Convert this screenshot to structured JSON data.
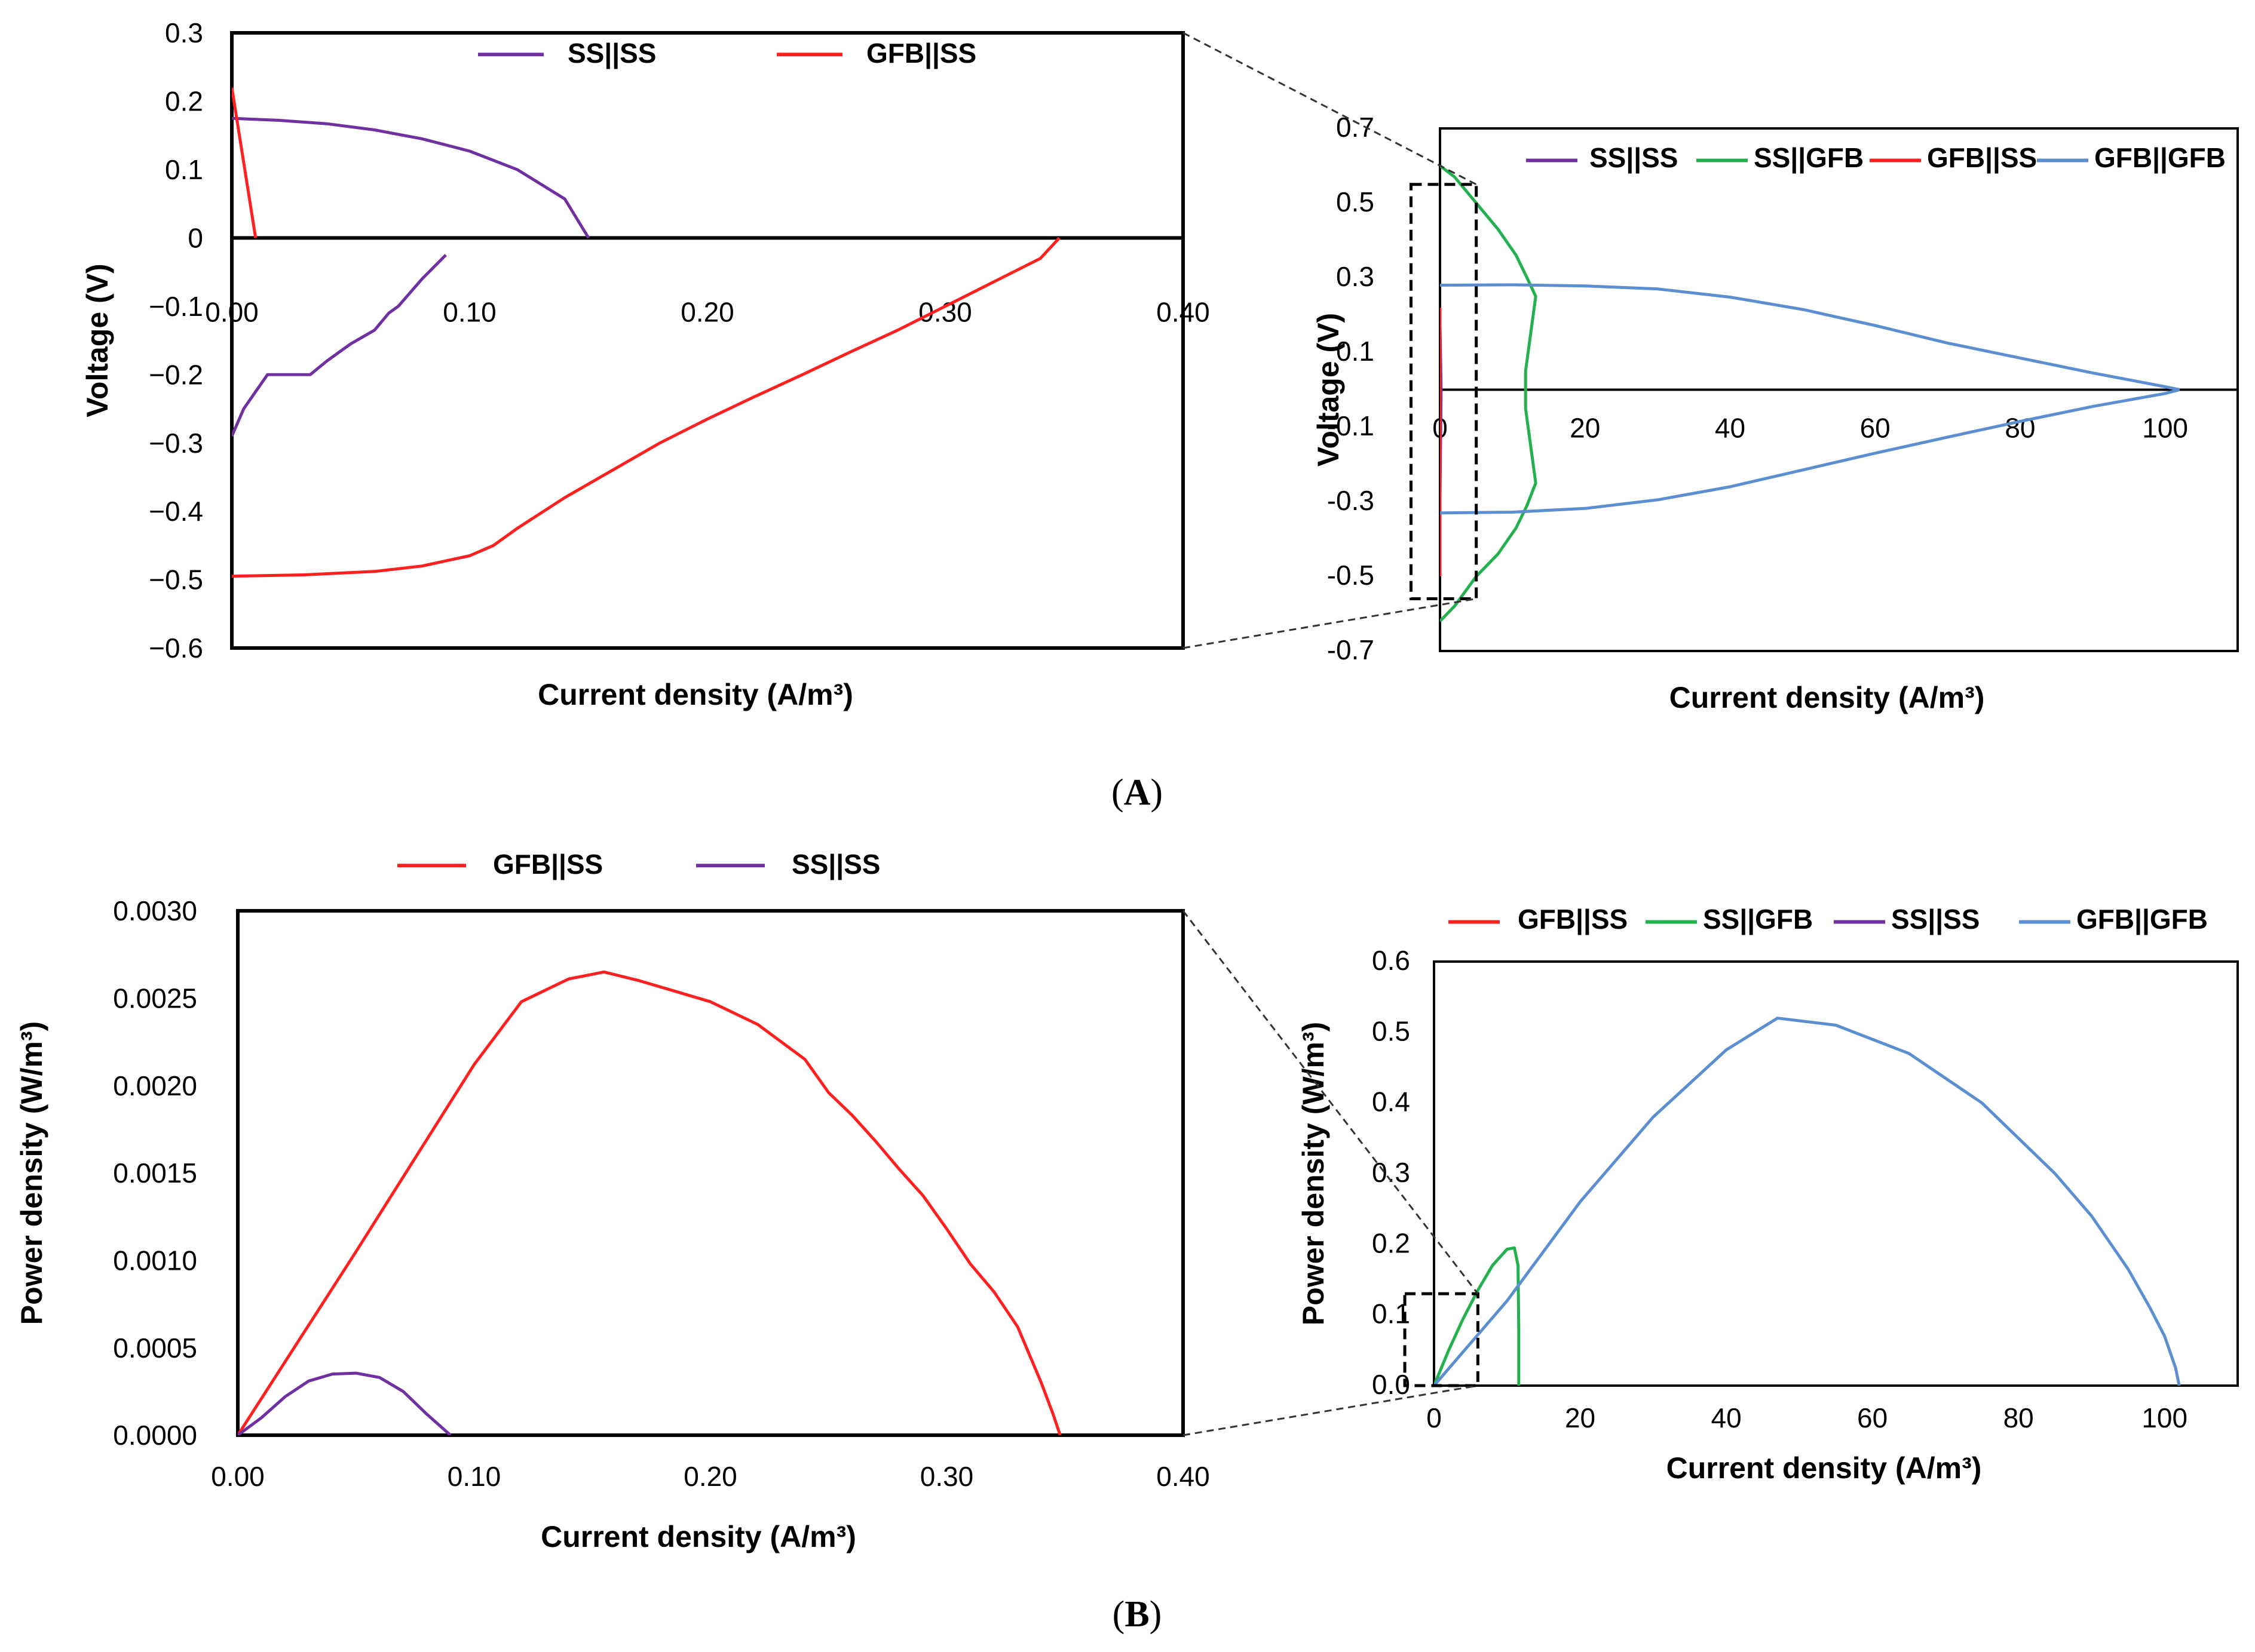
{
  "colors": {
    "SS||SS": "#7030a0",
    "GFB||SS": "#ff2020",
    "SS||GFB": "#22b14c",
    "GFB||GFB": "#5b8fd0"
  },
  "panel_labels": [
    "A",
    "B"
  ],
  "chart_data": [
    {
      "id": "A_left",
      "type": "line",
      "xlabel": "Current density (A/m³)",
      "ylabel": "Voltage (V)",
      "xlim": [
        0,
        0.4
      ],
      "ylim": [
        -0.6,
        0.3
      ],
      "xticks": [
        0,
        0.1,
        0.2,
        0.3,
        0.4
      ],
      "xtick_labels": [
        "0.00",
        "0.10",
        "0.20",
        "0.30",
        "0.40"
      ],
      "yticks": [
        0.3,
        0.2,
        0.1,
        0,
        -0.1,
        -0.2,
        -0.3,
        -0.4,
        -0.5,
        -0.6
      ],
      "ytick_labels": [
        "0.3",
        "0.2",
        "0.1",
        "0",
        "−0.1",
        "−0.2",
        "−0.3",
        "−0.4",
        "−0.5",
        "−0.6"
      ],
      "grid": false,
      "legend_position": "top",
      "legend": [
        "SS||SS",
        "GFB||SS"
      ],
      "series": [
        {
          "name": "SS||SS",
          "x": [
            0,
            0.02,
            0.04,
            0.06,
            0.08,
            0.1,
            0.12,
            0.14,
            0.15
          ],
          "y": [
            0.175,
            0.172,
            0.167,
            0.158,
            0.145,
            0.127,
            0.1,
            0.057,
            0
          ]
        },
        {
          "name": "SS||SS",
          "x": [
            0,
            0.005,
            0.015,
            0.033,
            0.04,
            0.05,
            0.06,
            0.066,
            0.07,
            0.08,
            0.09
          ],
          "y": [
            -0.29,
            -0.25,
            -0.2,
            -0.2,
            -0.18,
            -0.155,
            -0.135,
            -0.11,
            -0.1,
            -0.06,
            -0.025
          ]
        },
        {
          "name": "GFB||SS",
          "x": [
            0,
            0.01
          ],
          "y": [
            0.22,
            0
          ]
        },
        {
          "name": "GFB||SS",
          "x": [
            0,
            0.03,
            0.06,
            0.08,
            0.1,
            0.11,
            0.12,
            0.14,
            0.16,
            0.18,
            0.2,
            0.22,
            0.24,
            0.26,
            0.28,
            0.3,
            0.32,
            0.34,
            0.348
          ],
          "y": [
            -0.495,
            -0.493,
            -0.488,
            -0.48,
            -0.465,
            -0.45,
            -0.425,
            -0.38,
            -0.34,
            -0.3,
            -0.265,
            -0.232,
            -0.2,
            -0.167,
            -0.135,
            -0.1,
            -0.065,
            -0.03,
            0
          ]
        }
      ]
    },
    {
      "id": "A_right",
      "type": "line",
      "xlabel": "Current density (A/m³)",
      "ylabel": "Voltage (V)",
      "xlim": [
        0,
        110
      ],
      "ylim": [
        -0.7,
        0.7
      ],
      "xticks": [
        0,
        20,
        40,
        60,
        80,
        100
      ],
      "xtick_labels": [
        "0",
        "20",
        "40",
        "60",
        "80",
        "100"
      ],
      "yticks": [
        0.7,
        0.5,
        0.3,
        0.1,
        -0.1,
        -0.3,
        -0.5,
        -0.7
      ],
      "ytick_labels": [
        "0.7",
        "0.5",
        "0.3",
        "0.1",
        "-0.1",
        "-0.3",
        "-0.5",
        "-0.7"
      ],
      "grid": false,
      "legend_position": "top",
      "legend": [
        "SS||SS",
        "SS||GFB",
        "GFB||SS",
        "GFB||GFB"
      ],
      "series": [
        {
          "name": "SS||SS",
          "x": [
            0,
            0.15,
            0,
            0.09,
            0
          ],
          "y": [
            0.175,
            0,
            -0.29,
            0,
            0.175
          ]
        },
        {
          "name": "SS||GFB",
          "x": [
            0,
            2,
            5,
            8,
            10.5,
            12,
            13.2,
            12.5,
            11.8,
            11.8,
            12.5,
            13.2,
            12,
            10.5,
            8,
            5,
            2,
            0
          ],
          "y": [
            0.6,
            0.57,
            0.5,
            0.43,
            0.36,
            0.3,
            0.25,
            0.15,
            0.05,
            -0.05,
            -0.15,
            -0.25,
            -0.31,
            -0.37,
            -0.44,
            -0.5,
            -0.58,
            -0.62
          ]
        },
        {
          "name": "GFB||SS",
          "x": [
            0,
            0,
            0
          ],
          "y": [
            0.22,
            0,
            -0.5
          ]
        },
        {
          "name": "GFB||GFB",
          "x": [
            0,
            10,
            20,
            30,
            40,
            50,
            60,
            70,
            80,
            90,
            100,
            102
          ],
          "y": [
            0.28,
            0.281,
            0.278,
            0.27,
            0.248,
            0.215,
            0.172,
            0.125,
            0.085,
            0.045,
            0.008,
            0
          ]
        },
        {
          "name": "GFB||GFB",
          "x": [
            0,
            10,
            20,
            30,
            40,
            50,
            60,
            70,
            80,
            90,
            100,
            102
          ],
          "y": [
            -0.33,
            -0.328,
            -0.318,
            -0.295,
            -0.26,
            -0.215,
            -0.17,
            -0.127,
            -0.085,
            -0.045,
            -0.01,
            0
          ]
        }
      ],
      "zoom_box": {
        "x": [
          -4,
          5
        ],
        "y": [
          -0.56,
          0.55
        ]
      }
    },
    {
      "id": "B_left",
      "type": "line",
      "xlabel": "Current density (A/m³)",
      "ylabel": "Power density (W/m³)",
      "xlim": [
        0,
        0.4
      ],
      "ylim": [
        0,
        0.003
      ],
      "xticks": [
        0,
        0.1,
        0.2,
        0.3,
        0.4
      ],
      "xtick_labels": [
        "0.00",
        "0.10",
        "0.20",
        "0.30",
        "0.40"
      ],
      "yticks": [
        0,
        0.0005,
        0.001,
        0.0015,
        0.002,
        0.0025,
        0.003
      ],
      "ytick_labels": [
        "0.0000",
        "0.0005",
        "0.0010",
        "0.0015",
        "0.0020",
        "0.0025",
        "0.0030"
      ],
      "grid": false,
      "legend_position": "top",
      "legend": [
        "GFB||SS",
        "SS||SS"
      ],
      "series": [
        {
          "name": "GFB||SS",
          "x": [
            0,
            0.05,
            0.1,
            0.12,
            0.14,
            0.155,
            0.17,
            0.2,
            0.22,
            0.24,
            0.25,
            0.26,
            0.27,
            0.28,
            0.29,
            0.3,
            0.31,
            0.32,
            0.33,
            0.34,
            0.345,
            0.348
          ],
          "y": [
            0,
            0.00105,
            0.00212,
            0.00248,
            0.00261,
            0.00265,
            0.0026,
            0.00248,
            0.00235,
            0.00215,
            0.00196,
            0.00183,
            0.00168,
            0.00152,
            0.00137,
            0.00118,
            0.00098,
            0.00082,
            0.00062,
            0.0003,
            0.00012,
            0
          ]
        },
        {
          "name": "SS||SS",
          "x": [
            0,
            0.01,
            0.02,
            0.03,
            0.04,
            0.05,
            0.06,
            0.07,
            0.08,
            0.09
          ],
          "y": [
            0,
            0.0001,
            0.00022,
            0.00031,
            0.00035,
            0.000355,
            0.00033,
            0.00025,
            0.00012,
            0
          ]
        }
      ]
    },
    {
      "id": "B_right",
      "type": "line",
      "xlabel": "Current density (A/m³)",
      "ylabel": "Power density (W/m³)",
      "xlim": [
        0,
        110
      ],
      "ylim": [
        0,
        0.6
      ],
      "xticks": [
        0,
        20,
        40,
        60,
        80,
        100
      ],
      "xtick_labels": [
        "0",
        "20",
        "40",
        "60",
        "80",
        "100"
      ],
      "yticks": [
        0,
        0.1,
        0.2,
        0.3,
        0.4,
        0.5,
        0.6
      ],
      "ytick_labels": [
        "0.0",
        "0.1",
        "0.2",
        "0.3",
        "0.4",
        "0.5",
        "0.6"
      ],
      "grid": false,
      "legend_position": "top",
      "legend": [
        "GFB||SS",
        "SS||GFB",
        "SS||SS",
        "GFB||GFB"
      ],
      "series": [
        {
          "name": "GFB||SS",
          "x": [
            0,
            0.348
          ],
          "y": [
            0,
            0.0027
          ]
        },
        {
          "name": "SS||GFB",
          "x": [
            0,
            2,
            4,
            6,
            8,
            10,
            11,
            11.5,
            11.6,
            11.6
          ],
          "y": [
            0,
            0.05,
            0.095,
            0.135,
            0.17,
            0.193,
            0.195,
            0.17,
            0.08,
            0
          ]
        },
        {
          "name": "SS||SS",
          "x": [
            0,
            0.09
          ],
          "y": [
            0,
            0.00036
          ]
        },
        {
          "name": "GFB||GFB",
          "x": [
            0,
            10,
            20,
            30,
            40,
            47,
            55,
            65,
            75,
            85,
            90,
            95,
            98,
            100,
            101.5,
            102
          ],
          "y": [
            0,
            0.12,
            0.26,
            0.38,
            0.475,
            0.52,
            0.51,
            0.47,
            0.4,
            0.3,
            0.24,
            0.165,
            0.11,
            0.07,
            0.025,
            0
          ]
        }
      ],
      "zoom_box": {
        "x": [
          -4,
          6
        ],
        "y": [
          0,
          0.13
        ]
      }
    }
  ]
}
